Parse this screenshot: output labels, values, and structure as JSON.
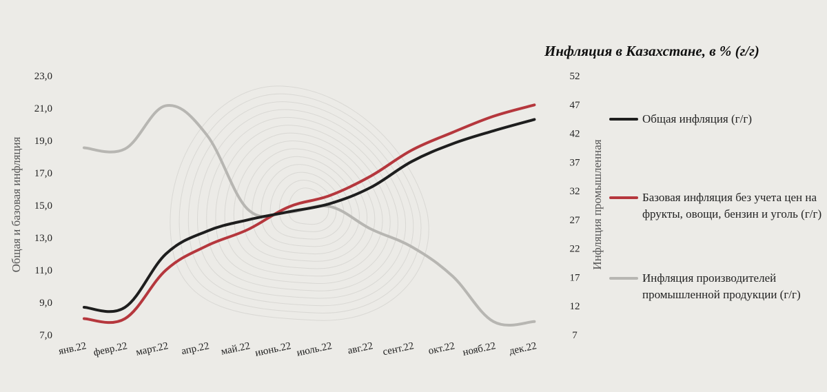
{
  "chart_data": {
    "type": "line",
    "title": "Инфляция в Казахстане, в % (г/г)",
    "categories": [
      "янв.22",
      "февр.22",
      "март.22",
      "апр.22",
      "май.22",
      "июнь.22",
      "июль.22",
      "авг.22",
      "сент.22",
      "окт.22",
      "нояб.22",
      "дек.22"
    ],
    "y_left": {
      "label": "Общая и базовая инфляция",
      "ylim": [
        7.0,
        23.0
      ],
      "ticks": [
        "7,0",
        "9,0",
        "11,0",
        "13,0",
        "15,0",
        "17,0",
        "19,0",
        "21,0",
        "23,0"
      ]
    },
    "y_right": {
      "label": "Инфляция промышленная",
      "ylim": [
        7,
        52
      ],
      "ticks": [
        "7",
        "12",
        "17",
        "22",
        "27",
        "32",
        "37",
        "42",
        "47",
        "52"
      ]
    },
    "series": [
      {
        "name": "Общая инфляция (г/г)",
        "axis": "left",
        "color": "#1e1e1e",
        "values": [
          8.7,
          8.7,
          12.0,
          13.4,
          14.1,
          14.6,
          15.1,
          16.1,
          17.7,
          18.8,
          19.6,
          20.3
        ]
      },
      {
        "name": "Базовая инфляция без учета цен на фрукты, овощи, бензин и уголь (г/г)",
        "axis": "left",
        "color": "#b5373d",
        "values": [
          8.0,
          8.0,
          11.0,
          12.5,
          13.5,
          14.9,
          15.6,
          16.8,
          18.4,
          19.5,
          20.5,
          21.2
        ]
      },
      {
        "name": "Инфляция производителей промышленной продукции (г/г)",
        "axis": "right",
        "color": "#b7b6b2",
        "values": [
          39.5,
          39.3,
          46.8,
          41.7,
          28.8,
          28.3,
          29.3,
          25.4,
          22.3,
          17.2,
          9.3,
          9.3
        ]
      }
    ],
    "legend_position": "right",
    "grid": false
  }
}
